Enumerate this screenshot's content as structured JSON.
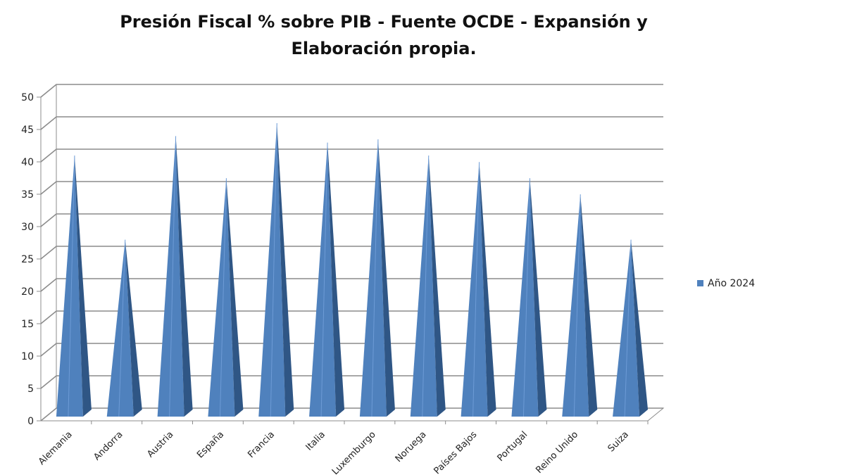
{
  "chart_data": {
    "type": "bar",
    "bar_shape": "3d-pyramid",
    "title_line1": "Presión Fiscal % sobre PIB - Fuente OCDE - Expansión y",
    "title_line2": "Elaboración propia.",
    "categories": [
      "Alemania",
      "Andorra",
      "Austria",
      "España",
      "Francia",
      "Italia",
      "Luxemburgo",
      "Noruega",
      "Países Bajos",
      "Portugal",
      "Reino Unido",
      "Suiza"
    ],
    "series": [
      {
        "name": "Año 2024",
        "values": [
          40,
          27,
          43,
          36.5,
          45,
          42,
          42.5,
          40,
          39,
          36.5,
          34,
          27
        ],
        "color": "#4F81BD"
      }
    ],
    "ylim": [
      0,
      50
    ],
    "yticks": [
      0,
      5,
      10,
      15,
      20,
      25,
      30,
      35,
      40,
      45,
      50
    ],
    "grid": true,
    "legend_position": "right",
    "xlabel": "",
    "ylabel": ""
  }
}
